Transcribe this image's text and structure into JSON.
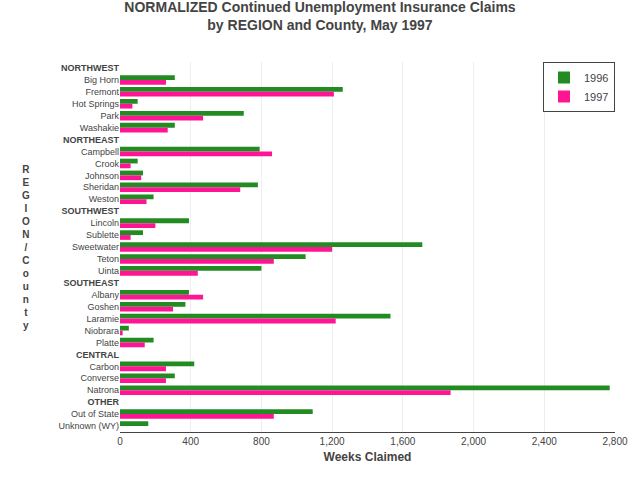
{
  "chart_data": {
    "type": "bar",
    "orientation": "horizontal",
    "title": "NORMALIZED Continued Unemployment Insurance Claims\nby REGION and County, May 1997",
    "xlabel": "Weeks Claimed",
    "ylabel": "R\nE\nG\nI\nO\nN\n/\nC\no\nu\nn\nt\ny",
    "categories": [
      "NORTHWEST",
      "Big Horn",
      "Fremont",
      "Hot Springs",
      "Park",
      "Washakie",
      "NORTHEAST",
      "Campbell",
      "Crook",
      "Johnson",
      "Sheridan",
      "Weston",
      "SOUTHWEST",
      "Lincoln",
      "Sublette",
      "Sweetwater",
      "Teton",
      "Uinta",
      "SOUTHEAST",
      "Albany",
      "Goshen",
      "Laramie",
      "Niobrara",
      "Platte",
      "CENTRAL",
      "Carbon",
      "Converse",
      "Natrona",
      "OTHER",
      "Out of State",
      "Unknown (WY)"
    ],
    "series": [
      {
        "name": "1996",
        "color": "#228B22",
        "values": [
          0,
          310,
          1260,
          100,
          700,
          310,
          0,
          790,
          100,
          130,
          780,
          190,
          0,
          390,
          130,
          1710,
          1050,
          800,
          0,
          390,
          370,
          1530,
          50,
          190,
          0,
          420,
          310,
          2770,
          0,
          1090,
          160
        ]
      },
      {
        "name": "1997",
        "color": "#FF1493",
        "values": [
          0,
          260,
          1210,
          70,
          470,
          270,
          0,
          860,
          60,
          120,
          680,
          150,
          0,
          200,
          60,
          1200,
          870,
          440,
          0,
          470,
          300,
          1220,
          15,
          140,
          0,
          260,
          260,
          1870,
          0,
          870,
          0
        ]
      }
    ],
    "xlim": [
      0,
      2800
    ],
    "xticks": [
      0,
      400,
      800,
      {
        "value": 1200,
        "label": "1,200"
      },
      {
        "value": 1600,
        "label": "1,600"
      },
      {
        "value": 2000,
        "label": "2,000"
      },
      {
        "value": 2400,
        "label": "2,400"
      },
      {
        "value": 2800,
        "label": "2,800"
      }
    ],
    "grid": true,
    "legend": "upper right"
  }
}
